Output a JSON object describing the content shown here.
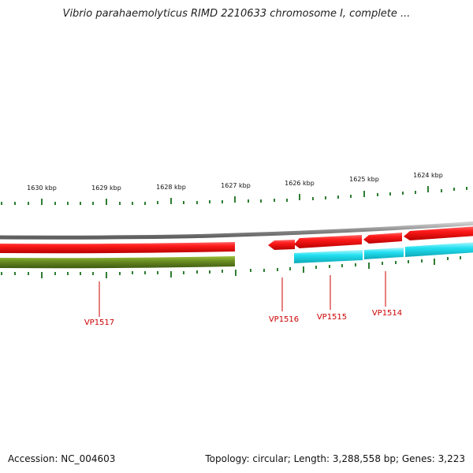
{
  "title": "Vibrio parahaemolyticus RIMD 2210633 chromosome I, complete ...",
  "footer": {
    "accession": "Accession: NC_004603",
    "summary": "Topology: circular; Length: 3,288,558 bp; Genes: 3,223"
  },
  "colors": {
    "backbone": "#8c8c8c",
    "forward_gene": "#ee1111",
    "reverse_gene_dark": "#6b8e23",
    "reverse_gene_cyan": "#22e0f0",
    "tick": "#2e7d32",
    "label": "#cc0000"
  },
  "scale": {
    "unit": "kbp",
    "labels": [
      "1630 kbp",
      "1629 kbp",
      "1628 kbp",
      "1627 kbp",
      "1626 kbp",
      "1625 kbp",
      "1624 kbp"
    ]
  },
  "genes": [
    {
      "name": "VP1517"
    },
    {
      "name": "VP1516"
    },
    {
      "name": "VP1515"
    },
    {
      "name": "VP1514"
    }
  ]
}
